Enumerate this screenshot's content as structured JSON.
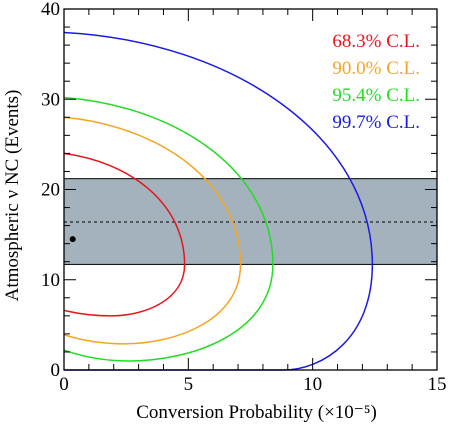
{
  "chart_data": {
    "type": "line",
    "title": "",
    "xlabel": "Conversion Probability (×10⁻⁵)",
    "ylabel": "Atmospheric ν NC (Events)",
    "xlim": [
      0,
      15
    ],
    "ylim": [
      0,
      40
    ],
    "x_ticks": [
      0,
      5,
      10,
      15
    ],
    "y_ticks": [
      0,
      10,
      20,
      30,
      40
    ],
    "x_tick_labels": [
      "0",
      "5",
      "10",
      "15"
    ],
    "y_tick_labels": [
      "0",
      "10",
      "20",
      "30",
      "40"
    ],
    "grid": false,
    "legend_position": "top-right",
    "band": {
      "ymin": 11.7,
      "ymax": 21.2,
      "center": 16.4,
      "color": "#a3b2bd"
    },
    "best_fit": {
      "x": 0.35,
      "y": 14.5
    },
    "series": [
      {
        "name": "68.3% C.L.",
        "color": "#e8151d",
        "contour": {
          "xc": 0,
          "yc": 11.7,
          "x_max": 4.85,
          "y_top": 24.0,
          "y_bottom": 6.6,
          "x_at_bottom_min": 1.9,
          "y_bottom_min": 6.0
        }
      },
      {
        "name": "90.0% C.L.",
        "color": "#f5a623",
        "contour": {
          "xc": 0,
          "yc": 11.7,
          "x_max": 7.1,
          "y_top": 28.0,
          "y_bottom": 3.9,
          "x_at_bottom_min": 2.4,
          "y_bottom_min": 2.9
        }
      },
      {
        "name": "95.4% C.L.",
        "color": "#22dd22",
        "contour": {
          "xc": 0,
          "yc": 11.7,
          "x_max": 8.4,
          "y_top": 30.2,
          "y_bottom": 2.2,
          "x_at_bottom_min": 2.6,
          "y_bottom_min": 1.0
        }
      },
      {
        "name": "99.7% C.L.",
        "color": "#1a1ae6",
        "contour": {
          "xc": 0,
          "yc": 11.7,
          "x_max": 12.4,
          "y_top": 37.4,
          "y_bottom": 0.0,
          "x_at_bottom_min": 8.8,
          "y_bottom_min": 0.0
        }
      }
    ]
  }
}
